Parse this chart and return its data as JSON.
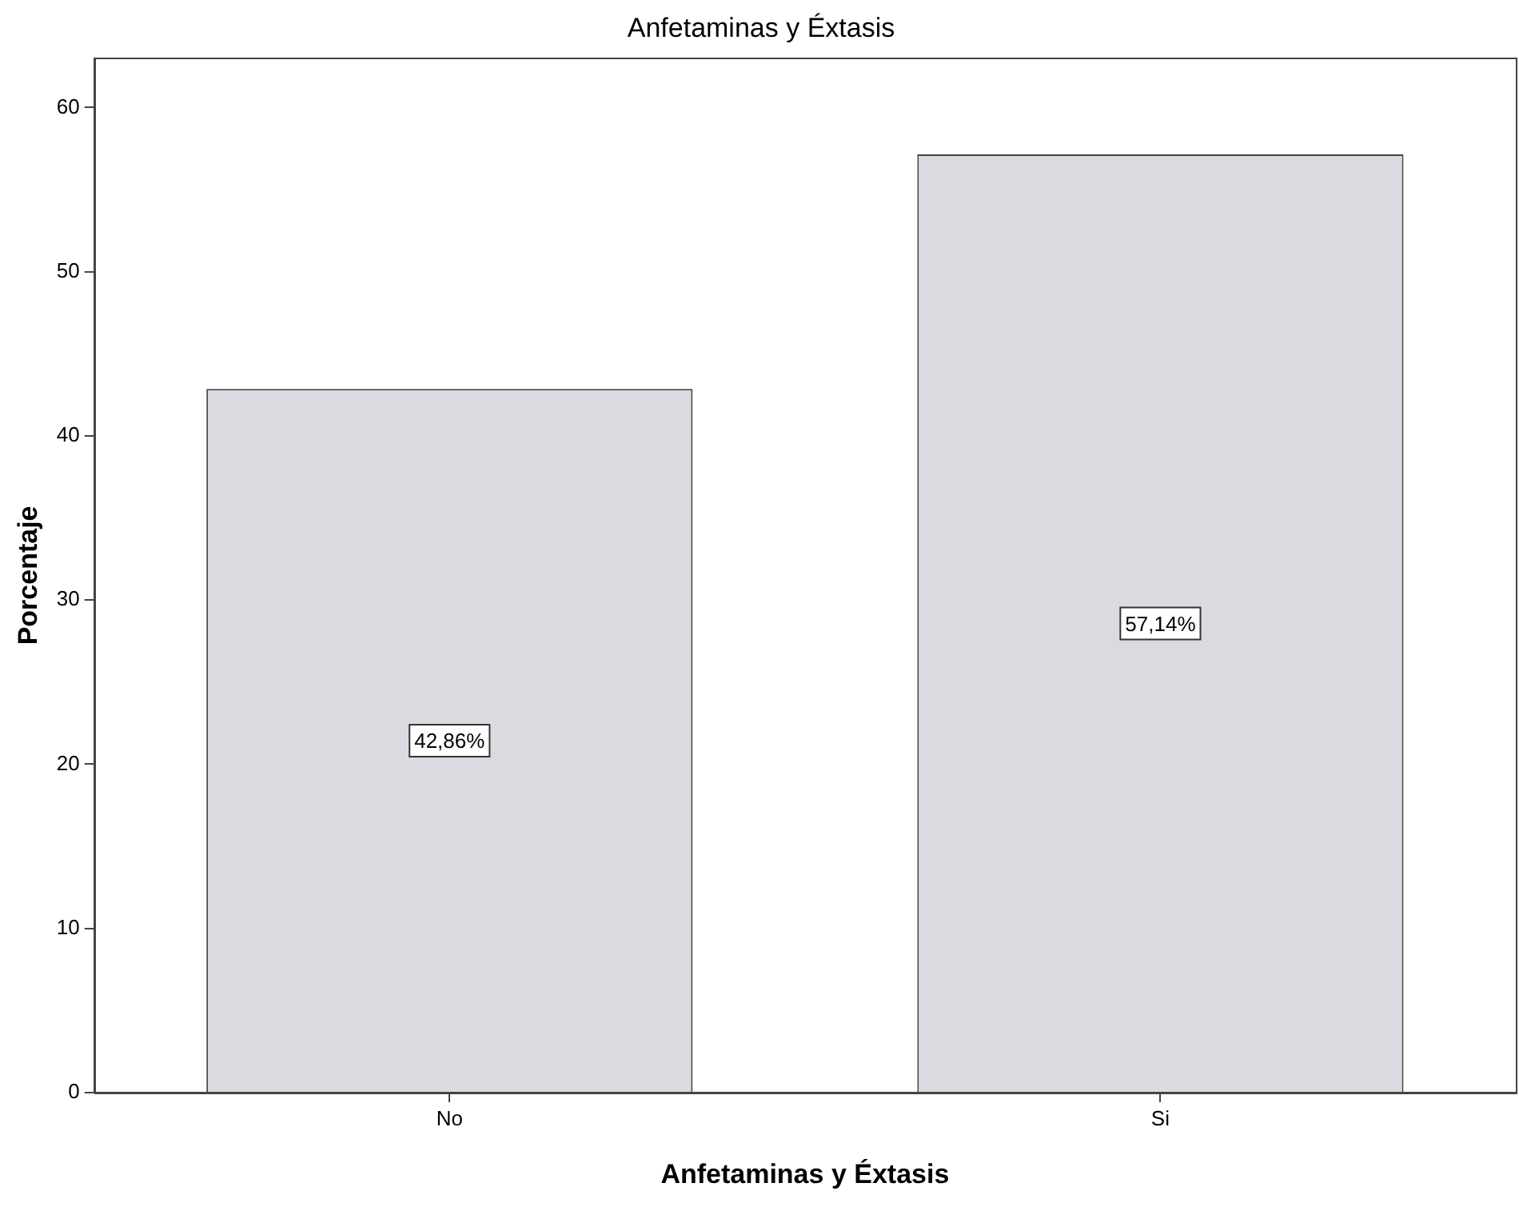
{
  "chart_data": {
    "type": "bar",
    "title": "Anfetaminas y Éxtasis",
    "xlabel": "Anfetaminas y Éxtasis",
    "ylabel": "Porcentaje",
    "categories": [
      "No",
      "Si"
    ],
    "values": [
      42.86,
      57.14
    ],
    "value_labels": [
      "42,86%",
      "57,14%"
    ],
    "color": "#dcdae0",
    "ylim": [
      0,
      63
    ],
    "yticks": [
      0,
      10,
      20,
      30,
      40,
      50,
      60
    ],
    "grid": false,
    "legend": false
  }
}
